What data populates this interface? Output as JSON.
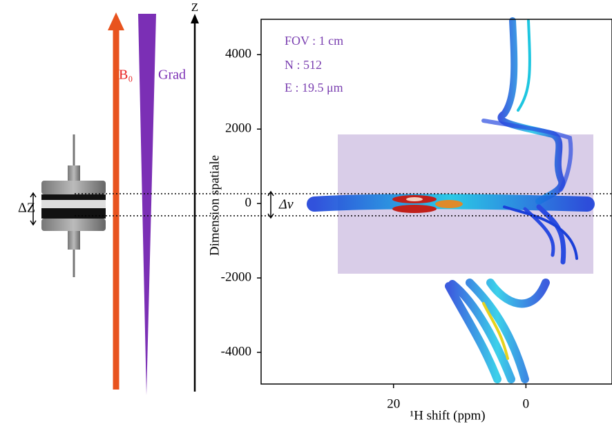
{
  "diagram": {
    "b0_label": "B₀",
    "grad_label": "Grad",
    "z_label": "Z",
    "dz_label": "ΔZ",
    "dnu_label": "Δν"
  },
  "plot": {
    "annotations": [
      "FOV : 1 cm",
      "N : 512",
      "E : 19.5 μm"
    ],
    "ylabel": "Dimension spatiale",
    "xlabel": "¹H shift (ppm)",
    "xlim": [
      40,
      -13
    ],
    "ylim": [
      -4850,
      4950
    ],
    "xticks": [
      20,
      0
    ],
    "yticks": [
      4000,
      2000,
      0,
      -2000,
      -4000
    ]
  }
}
